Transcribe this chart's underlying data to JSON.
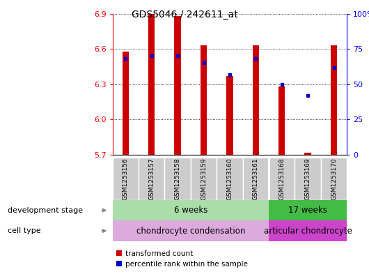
{
  "title": "GDS5046 / 242611_at",
  "samples": [
    "GSM1253156",
    "GSM1253157",
    "GSM1253158",
    "GSM1253159",
    "GSM1253160",
    "GSM1253161",
    "GSM1253168",
    "GSM1253169",
    "GSM1253170"
  ],
  "bar_values": [
    6.58,
    6.9,
    6.88,
    6.63,
    6.37,
    6.63,
    6.28,
    5.72,
    6.63
  ],
  "percentile_values": [
    68,
    70,
    70,
    65,
    57,
    68,
    50,
    42,
    62
  ],
  "ymin": 5.7,
  "ymax": 6.9,
  "yticks": [
    5.7,
    6.0,
    6.3,
    6.6,
    6.9
  ],
  "right_yticks": [
    0,
    25,
    50,
    75,
    100
  ],
  "bar_color": "#cc0000",
  "dot_color": "#0000cc",
  "background_sample": "#cccccc",
  "dev_stage_6w_color": "#aaddaa",
  "dev_stage_17w_color": "#44bb44",
  "cell_type_chondro_color": "#ddaadd",
  "cell_type_articular_color": "#cc44cc",
  "dev_stage_label": "development stage",
  "cell_type_label": "cell type",
  "six_weeks_label": "6 weeks",
  "seventeen_weeks_label": "17 weeks",
  "chondro_condensation_label": "chondrocyte condensation",
  "articular_chondrocyte_label": "articular chondrocyte",
  "group_split": 6,
  "legend_red": "transformed count",
  "legend_blue": "percentile rank within the sample"
}
